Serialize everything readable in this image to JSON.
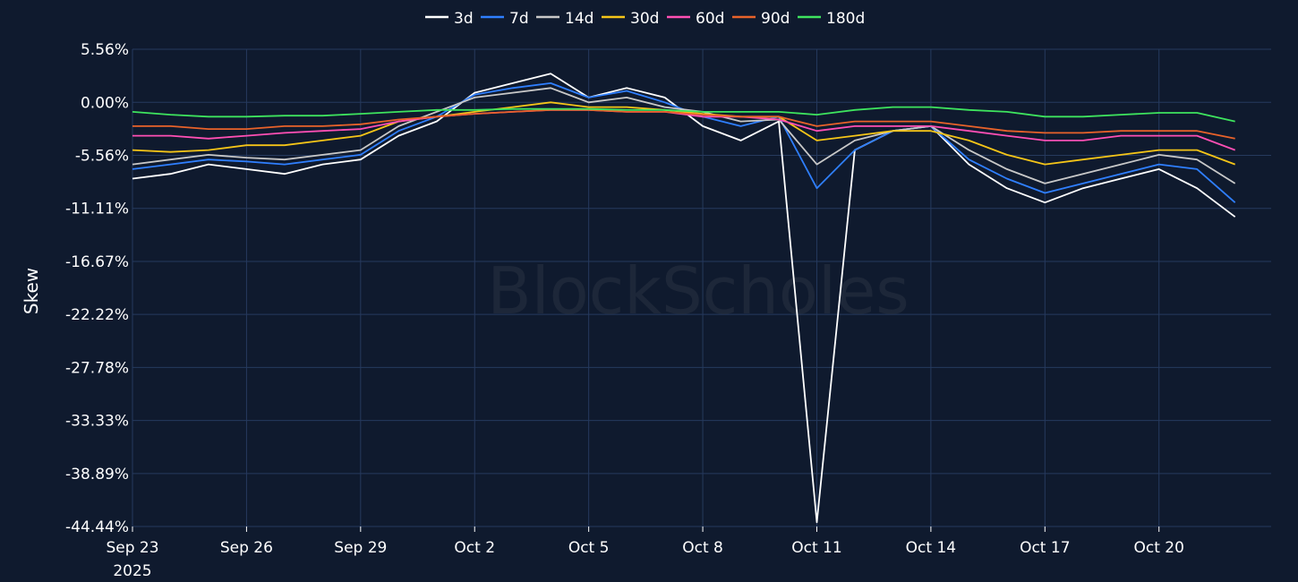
{
  "watermark": "BlockScholes",
  "chart_data": {
    "type": "line",
    "title": "",
    "xlabel": "",
    "ylabel": "Skew",
    "y_unit": "%",
    "ylim": [
      -44.44,
      5.56
    ],
    "yticks": [
      "5.56%",
      "0.00%",
      "-5.56%",
      "-11.11%",
      "-16.67%",
      "-22.22%",
      "-27.78%",
      "-33.33%",
      "-38.89%",
      "-44.44%"
    ],
    "ytick_values": [
      5.56,
      0,
      -5.56,
      -11.11,
      -16.67,
      -22.22,
      -27.78,
      -33.33,
      -38.89,
      -44.44
    ],
    "xlim": [
      "2025-09-23",
      "2025-10-22"
    ],
    "xticks": [
      {
        "date": "2025-09-23",
        "label": "Sep 23",
        "sublabel": "2025"
      },
      {
        "date": "2025-09-26",
        "label": "Sep 26"
      },
      {
        "date": "2025-09-29",
        "label": "Sep 29"
      },
      {
        "date": "2025-10-02",
        "label": "Oct 2"
      },
      {
        "date": "2025-10-05",
        "label": "Oct 5"
      },
      {
        "date": "2025-10-08",
        "label": "Oct 8"
      },
      {
        "date": "2025-10-11",
        "label": "Oct 11"
      },
      {
        "date": "2025-10-14",
        "label": "Oct 14"
      },
      {
        "date": "2025-10-17",
        "label": "Oct 17"
      },
      {
        "date": "2025-10-20",
        "label": "Oct 20"
      }
    ],
    "grid": true,
    "legend_position": "top-center",
    "x": [
      "2025-09-23",
      "2025-09-24",
      "2025-09-25",
      "2025-09-26",
      "2025-09-27",
      "2025-09-28",
      "2025-09-29",
      "2025-09-30",
      "2025-10-01",
      "2025-10-02",
      "2025-10-03",
      "2025-10-04",
      "2025-10-05",
      "2025-10-06",
      "2025-10-07",
      "2025-10-08",
      "2025-10-09",
      "2025-10-10",
      "2025-10-11",
      "2025-10-12",
      "2025-10-13",
      "2025-10-14",
      "2025-10-15",
      "2025-10-16",
      "2025-10-17",
      "2025-10-18",
      "2025-10-19",
      "2025-10-20",
      "2025-10-21",
      "2025-10-22"
    ],
    "series": [
      {
        "name": "3d",
        "color": "#ffffff",
        "values": [
          -8.0,
          -7.5,
          -6.5,
          -7.0,
          -7.5,
          -6.5,
          -6.0,
          -3.5,
          -2.0,
          1.0,
          2.0,
          3.0,
          0.5,
          1.5,
          0.5,
          -2.5,
          -4.0,
          -2.0,
          -44.0,
          -5.0,
          -3.0,
          -2.5,
          -6.5,
          -9.0,
          -10.5,
          -9.0,
          -8.0,
          -7.0,
          -9.0,
          -12.0
        ]
      },
      {
        "name": "7d",
        "color": "#2f7fff",
        "values": [
          -7.0,
          -6.5,
          -6.0,
          -6.2,
          -6.5,
          -6.0,
          -5.5,
          -3.0,
          -1.5,
          0.8,
          1.5,
          2.0,
          0.5,
          1.2,
          0.0,
          -1.5,
          -2.5,
          -1.5,
          -9.0,
          -5.0,
          -3.0,
          -2.5,
          -6.0,
          -8.0,
          -9.5,
          -8.5,
          -7.5,
          -6.5,
          -7.0,
          -10.5
        ]
      },
      {
        "name": "14d",
        "color": "#c8c8c8",
        "values": [
          -6.5,
          -6.0,
          -5.5,
          -5.8,
          -6.0,
          -5.5,
          -5.0,
          -2.5,
          -1.0,
          0.5,
          1.0,
          1.5,
          0.0,
          0.5,
          -0.5,
          -1.0,
          -2.0,
          -1.8,
          -6.5,
          -4.0,
          -3.0,
          -2.5,
          -5.0,
          -7.0,
          -8.5,
          -7.5,
          -6.5,
          -5.5,
          -6.0,
          -8.5
        ]
      },
      {
        "name": "30d",
        "color": "#f5c518",
        "values": [
          -5.0,
          -5.2,
          -5.0,
          -4.5,
          -4.5,
          -4.0,
          -3.5,
          -2.0,
          -1.5,
          -1.0,
          -0.5,
          0.0,
          -0.5,
          -0.5,
          -0.8,
          -1.2,
          -1.5,
          -1.5,
          -4.0,
          -3.5,
          -3.0,
          -3.0,
          -4.0,
          -5.5,
          -6.5,
          -6.0,
          -5.5,
          -5.0,
          -5.0,
          -6.5
        ]
      },
      {
        "name": "60d",
        "color": "#ff4fb4",
        "values": [
          -3.5,
          -3.5,
          -3.8,
          -3.5,
          -3.2,
          -3.0,
          -2.8,
          -2.0,
          -1.5,
          -1.2,
          -1.0,
          -0.8,
          -0.8,
          -1.0,
          -1.0,
          -1.5,
          -1.5,
          -1.8,
          -3.0,
          -2.5,
          -2.5,
          -2.5,
          -3.0,
          -3.5,
          -4.0,
          -4.0,
          -3.5,
          -3.5,
          -3.5,
          -5.0
        ]
      },
      {
        "name": "90d",
        "color": "#e8622a",
        "values": [
          -2.5,
          -2.5,
          -2.8,
          -2.8,
          -2.5,
          -2.5,
          -2.3,
          -1.8,
          -1.5,
          -1.2,
          -1.0,
          -0.8,
          -0.8,
          -1.0,
          -1.0,
          -1.3,
          -1.5,
          -1.5,
          -2.5,
          -2.0,
          -2.0,
          -2.0,
          -2.5,
          -3.0,
          -3.2,
          -3.2,
          -3.0,
          -3.0,
          -3.0,
          -3.8
        ]
      },
      {
        "name": "180d",
        "color": "#3ee45e",
        "values": [
          -1.0,
          -1.3,
          -1.5,
          -1.5,
          -1.4,
          -1.4,
          -1.2,
          -1.0,
          -0.8,
          -0.8,
          -0.7,
          -0.7,
          -0.7,
          -0.8,
          -0.8,
          -1.0,
          -1.0,
          -1.0,
          -1.3,
          -0.8,
          -0.5,
          -0.5,
          -0.8,
          -1.0,
          -1.5,
          -1.5,
          -1.3,
          -1.1,
          -1.1,
          -2.0
        ]
      }
    ]
  }
}
